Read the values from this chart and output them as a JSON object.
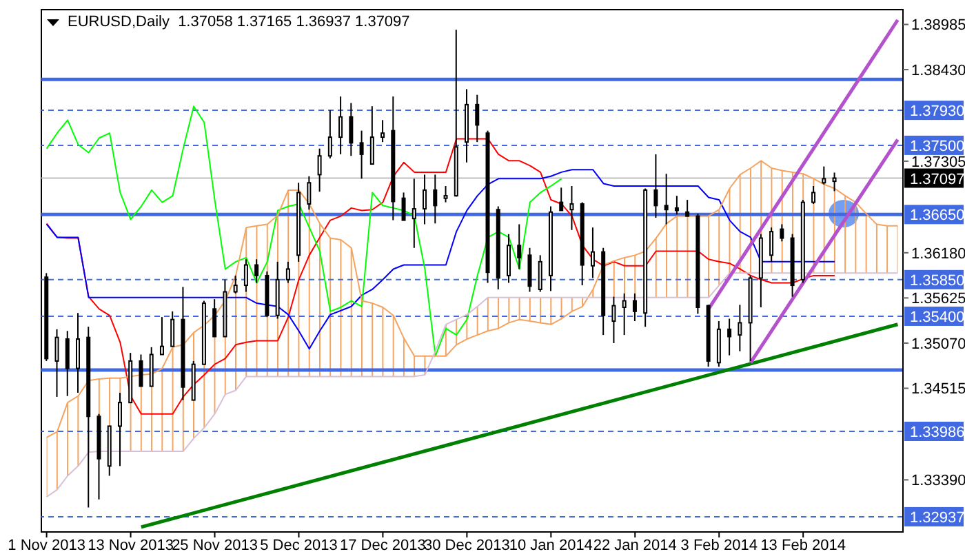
{
  "chart_data": {
    "type": "candlestick",
    "title": "EURUSD,Daily  1.37058 1.37165 1.36937 1.37097",
    "categories": [
      "1 Nov 2013",
      null,
      null,
      null,
      null,
      null,
      null,
      null,
      "13 Nov 2013",
      null,
      null,
      null,
      null,
      null,
      null,
      null,
      "25 Nov 2013",
      null,
      null,
      null,
      null,
      null,
      null,
      null,
      "5 Dec 2013",
      null,
      null,
      null,
      null,
      null,
      null,
      null,
      "17 Dec 2013",
      null,
      null,
      null,
      null,
      null,
      null,
      null,
      "30 Dec 2013",
      null,
      null,
      null,
      null,
      null,
      null,
      null,
      "10 Jan 2014",
      null,
      null,
      null,
      null,
      null,
      null,
      null,
      "22 Jan 2014",
      null,
      null,
      null,
      null,
      null,
      null,
      null,
      "3 Feb 2014",
      null,
      null,
      null,
      null,
      null,
      null,
      null,
      "13 Feb 2014",
      null,
      null,
      null,
      null,
      null,
      null,
      null,
      null,
      null
    ],
    "color": "#000000",
    "ohlc": [
      [
        1.3588,
        1.3593,
        1.3485,
        1.3488
      ],
      [
        1.3485,
        1.3524,
        1.3441,
        1.3514
      ],
      [
        1.3512,
        1.3522,
        1.3442,
        1.3476
      ],
      [
        1.3476,
        1.3544,
        1.3446,
        1.3512
      ],
      [
        1.3514,
        1.3527,
        1.3305,
        1.3417
      ],
      [
        1.3417,
        1.342,
        1.3315,
        1.3365
      ],
      [
        1.3356,
        1.3405,
        1.3344,
        1.3405
      ],
      [
        1.3405,
        1.3446,
        1.3356,
        1.3434
      ],
      [
        1.3434,
        1.3495,
        1.3434,
        1.3485
      ],
      [
        1.3485,
        1.3493,
        1.3454,
        1.3454
      ],
      [
        1.3454,
        1.3502,
        1.3454,
        1.3493
      ],
      [
        1.3493,
        1.3539,
        1.3493,
        1.3503
      ],
      [
        1.3503,
        1.3546,
        1.3503,
        1.3536
      ],
      [
        1.3536,
        1.3576,
        1.3437,
        1.3453
      ],
      [
        1.3437,
        1.3485,
        1.3437,
        1.3481
      ],
      [
        1.3481,
        1.3559,
        1.3481,
        1.3556
      ],
      [
        1.3549,
        1.3561,
        1.3515,
        1.3515
      ],
      [
        1.3515,
        1.3585,
        1.3515,
        1.357
      ],
      [
        1.357,
        1.359,
        1.3568,
        1.3578
      ],
      [
        1.3578,
        1.361,
        1.357,
        1.3603
      ],
      [
        1.3603,
        1.361,
        1.3581,
        1.359
      ],
      [
        1.359,
        1.3595,
        1.3539,
        1.3541
      ],
      [
        1.3541,
        1.3607,
        1.3537,
        1.3585
      ],
      [
        1.3585,
        1.3607,
        1.3581,
        1.3598
      ],
      [
        1.3615,
        1.3704,
        1.3607,
        1.3692
      ],
      [
        1.3678,
        1.3712,
        1.3671,
        1.3704
      ],
      [
        1.3714,
        1.3746,
        1.3693,
        1.3737
      ],
      [
        1.3737,
        1.3793,
        1.3734,
        1.376
      ],
      [
        1.376,
        1.381,
        1.3739,
        1.3785
      ],
      [
        1.3785,
        1.3802,
        1.3737,
        1.3753
      ],
      [
        1.3753,
        1.3768,
        1.3709,
        1.3739
      ],
      [
        1.3727,
        1.3798,
        1.3727,
        1.376
      ],
      [
        1.376,
        1.3781,
        1.3754,
        1.3765
      ],
      [
        1.3768,
        1.381,
        1.3658,
        1.3681
      ],
      [
        1.3685,
        1.3692,
        1.3658,
        1.3658
      ],
      [
        1.366,
        1.3709,
        1.3624,
        1.3672
      ],
      [
        1.3672,
        1.3714,
        1.3653,
        1.3695
      ],
      [
        1.3695,
        1.3714,
        1.3654,
        1.3676
      ],
      [
        1.3685,
        1.37,
        1.368,
        1.3688
      ],
      [
        1.3688,
        1.3892,
        1.3687,
        1.3748
      ],
      [
        1.3754,
        1.3819,
        1.3729,
        1.38
      ],
      [
        1.38,
        1.3812,
        1.3754,
        1.3775
      ],
      [
        1.3765,
        1.3768,
        1.3581,
        1.3594
      ],
      [
        1.3671,
        1.3675,
        1.3573,
        1.3587
      ],
      [
        1.359,
        1.3641,
        1.3581,
        1.3627
      ],
      [
        1.3627,
        1.3653,
        1.3598,
        1.3612
      ],
      [
        1.3615,
        1.3624,
        1.357,
        1.3577
      ],
      [
        1.3573,
        1.3615,
        1.357,
        1.3607
      ],
      [
        1.359,
        1.3675,
        1.3571,
        1.3668
      ],
      [
        1.368,
        1.3698,
        1.367,
        1.367
      ],
      [
        1.3671,
        1.37,
        1.3646,
        1.3678
      ],
      [
        1.3678,
        1.368,
        1.3578,
        1.3603
      ],
      [
        1.3602,
        1.3649,
        1.3587,
        1.3619
      ],
      [
        1.3619,
        1.3624,
        1.3517,
        1.3541
      ],
      [
        1.3534,
        1.3564,
        1.3507,
        1.3553
      ],
      [
        1.3551,
        1.3568,
        1.3517,
        1.3559
      ],
      [
        1.3559,
        1.3568,
        1.3534,
        1.3546
      ],
      [
        1.3544,
        1.3697,
        1.3527,
        1.3695
      ],
      [
        1.3695,
        1.3739,
        1.3661,
        1.3676
      ],
      [
        1.3676,
        1.3715,
        1.3653,
        1.3671
      ],
      [
        1.3673,
        1.3688,
        1.3665,
        1.367
      ],
      [
        1.3668,
        1.3683,
        1.3663,
        1.3663
      ],
      [
        1.3663,
        1.3666,
        1.3543,
        1.3551
      ],
      [
        1.3553,
        1.3554,
        1.3478,
        1.3485
      ],
      [
        1.3483,
        1.3534,
        1.3478,
        1.3524
      ],
      [
        1.3524,
        1.3537,
        1.3492,
        1.3515
      ],
      [
        1.3517,
        1.3554,
        1.3497,
        1.3532
      ],
      [
        1.3532,
        1.359,
        1.3485,
        1.3587
      ],
      [
        1.3587,
        1.3641,
        1.3551,
        1.3636
      ],
      [
        1.3615,
        1.3649,
        1.3607,
        1.3644
      ],
      [
        1.3647,
        1.3653,
        1.3632,
        1.3636
      ],
      [
        1.3636,
        1.3641,
        1.3564,
        1.3578
      ],
      [
        1.3585,
        1.3683,
        1.3581,
        1.368
      ],
      [
        1.368,
        1.37,
        1.3678,
        1.3692
      ],
      [
        1.3704,
        1.3724,
        1.3702,
        1.3709
      ],
      [
        1.37058,
        1.37165,
        1.36937,
        1.37097
      ],
      null,
      null,
      null,
      null,
      null,
      null
    ],
    "series": [
      {
        "type": "line",
        "color": "#ff0000",
        "values": [
          1.3654,
          1.3637,
          1.3636,
          1.3636,
          1.3564,
          1.3549,
          1.3541,
          1.3508,
          1.3442,
          1.342,
          1.342,
          1.342,
          1.342,
          1.3441,
          1.3456,
          1.3468,
          1.3481,
          1.3488,
          1.3505,
          1.3508,
          1.351,
          1.351,
          1.351,
          1.3539,
          1.3585,
          1.3615,
          1.3637,
          1.3658,
          1.3663,
          1.3673,
          1.367,
          1.3671,
          1.368,
          1.3712,
          1.3729,
          1.3717,
          1.3717,
          1.3717,
          1.3717,
          1.3758,
          1.3758,
          1.3758,
          1.3758,
          1.3739,
          1.3731,
          1.3731,
          1.3725,
          1.3717,
          1.3683,
          1.3678,
          1.3663,
          1.3627,
          1.361,
          1.3602,
          1.3607,
          1.3602,
          1.3602,
          1.3602,
          1.362,
          1.362,
          1.362,
          1.362,
          1.362,
          1.361,
          1.3607,
          1.3605,
          1.3598,
          1.359,
          1.3585,
          1.3581,
          1.3581,
          1.3581,
          1.3586,
          1.359,
          1.359,
          1.359,
          null,
          null,
          null,
          null,
          null,
          null
        ]
      },
      {
        "type": "line",
        "color": "#0000ff",
        "values": [
          1.3653,
          1.3637,
          1.3637,
          1.3637,
          1.3563,
          1.3563,
          1.3563,
          1.3563,
          1.3563,
          1.3563,
          1.3563,
          1.3563,
          1.3563,
          1.3563,
          1.3563,
          1.3563,
          1.3563,
          1.3563,
          1.3563,
          1.3563,
          1.3556,
          1.3554,
          1.3552,
          1.3542,
          1.3522,
          1.35,
          1.3522,
          1.3542,
          1.3547,
          1.3552,
          1.3566,
          1.3573,
          1.3585,
          1.3598,
          1.3603,
          1.3603,
          1.3603,
          1.3603,
          1.3603,
          1.3644,
          1.367,
          1.3688,
          1.3702,
          1.3709,
          1.3709,
          1.3709,
          1.3709,
          1.3709,
          1.3712,
          1.3717,
          1.372,
          1.372,
          1.372,
          1.3703,
          1.37,
          1.37,
          1.37,
          1.37,
          1.37,
          1.37,
          1.37,
          1.37,
          1.37,
          1.3686,
          1.3683,
          1.3658,
          1.3644,
          1.3637,
          1.3607,
          1.3607,
          1.3607,
          1.3607,
          1.3607,
          1.3607,
          1.3607,
          1.3607,
          null,
          null,
          null,
          null,
          null,
          null
        ]
      },
      {
        "type": "line",
        "color": "#00ff00",
        "values": [
          1.3746,
          1.3765,
          1.3781,
          1.3751,
          1.3741,
          1.3759,
          1.3765,
          1.3692,
          1.3659,
          1.3675,
          1.3695,
          1.368,
          1.3688,
          1.3746,
          1.3798,
          1.3778,
          1.3683,
          1.3598,
          1.3607,
          1.3612,
          1.3581,
          1.3607,
          1.367,
          1.3675,
          1.3678,
          1.3649,
          1.362,
          1.3546,
          1.3551,
          1.3559,
          1.3552,
          1.3692,
          1.3676,
          1.3673,
          1.367,
          1.3663,
          1.3598,
          1.3491,
          1.3525,
          1.3517,
          1.3536,
          1.359,
          1.3637,
          1.3644,
          1.3637,
          1.3598,
          1.368,
          1.3692,
          1.37,
          1.3709,
          null,
          null,
          null,
          null,
          null,
          null,
          null,
          null,
          null,
          null,
          null,
          null,
          null,
          null,
          null,
          null,
          null,
          null,
          null,
          null,
          null,
          null,
          null,
          null,
          null,
          null,
          null,
          null,
          null,
          null,
          null,
          null
        ]
      },
      {
        "type": "line",
        "color": "#f4a460",
        "lower": [
          1.3318,
          1.3327,
          1.3344,
          1.3356,
          1.3373,
          1.3374,
          1.3374,
          1.3374,
          1.3374,
          1.3374,
          1.3374,
          1.3374,
          1.3374,
          1.3374,
          1.339,
          1.3403,
          1.342,
          1.3444,
          1.3449,
          1.3466,
          1.3466,
          1.3466,
          1.3466,
          1.3466,
          1.3466,
          1.3466,
          1.3466,
          1.3466,
          1.3466,
          1.3466,
          1.3466,
          1.3466,
          1.3466,
          1.3466,
          1.3466,
          1.3466,
          1.3468,
          1.3491,
          1.3491,
          1.3505,
          1.3512,
          1.3517,
          1.3522,
          1.3525,
          1.3532,
          1.3536,
          1.3534,
          1.3532,
          1.353,
          1.3537,
          1.3546,
          1.3552,
          1.3563,
          1.3563,
          1.3563,
          1.3563,
          1.3563,
          1.3563,
          1.3563,
          1.3563,
          1.3563,
          1.3563,
          1.3563,
          1.3563,
          1.3578,
          1.3593,
          1.3593,
          1.3593,
          1.3593,
          1.3593,
          1.3593,
          1.3593,
          1.3593,
          1.3593,
          1.3593,
          1.3593,
          1.3593,
          1.3593,
          1.3593,
          1.3593,
          1.3593,
          1.3593
        ],
        "upper": [
          1.3391,
          1.3398,
          1.3434,
          1.3442,
          1.3461,
          1.3463,
          1.3464,
          1.3464,
          1.3466,
          1.3468,
          1.3469,
          1.3476,
          1.3502,
          1.3505,
          1.352,
          1.3529,
          1.3541,
          1.3559,
          1.359,
          1.3649,
          1.3651,
          1.3653,
          1.3664,
          1.3695,
          1.3695,
          1.3678,
          1.3654,
          1.3636,
          1.3634,
          1.3624,
          1.3559,
          1.3556,
          1.3551,
          1.3541,
          1.3513,
          1.3491,
          1.3491,
          1.3497,
          1.353,
          1.3536,
          1.3542,
          1.3552,
          1.3563,
          1.3563,
          1.3563,
          1.3563,
          1.3563,
          1.3563,
          1.3563,
          1.3563,
          1.3563,
          1.3563,
          1.3573,
          1.3603,
          1.3608,
          1.3612,
          1.3615,
          1.362,
          1.3636,
          1.3654,
          1.3663,
          1.3663,
          1.3663,
          1.3663,
          1.3671,
          1.3697,
          1.3714,
          1.3722,
          1.3731,
          1.3722,
          1.3719,
          1.3717,
          1.3715,
          1.3709,
          1.3702,
          1.3697,
          1.3688,
          1.368,
          1.3666,
          1.3653,
          1.3651,
          1.3651
        ],
        "values": [
          1.3391,
          1.3398,
          1.3434,
          1.3442,
          1.3461,
          1.3463,
          1.3464,
          1.3464,
          1.3466,
          1.3468,
          1.3469,
          1.3476,
          1.3502,
          1.3505,
          1.352,
          1.3529,
          1.3541,
          1.3559,
          1.359,
          1.3649,
          1.3651,
          1.3653,
          1.3664,
          1.3695,
          1.3695,
          1.3678,
          1.3654,
          1.3636,
          1.3634,
          1.3624,
          1.3559,
          1.3556,
          1.3551,
          1.3541,
          1.3513,
          1.3491,
          1.3491,
          1.3491,
          1.3491,
          1.3505,
          1.3512,
          1.3517,
          1.3522,
          1.3525,
          1.3532,
          1.3536,
          1.3534,
          1.3532,
          1.353,
          1.3537,
          1.3546,
          1.3552,
          1.3573,
          1.3603,
          1.3608,
          1.3612,
          1.3615,
          1.362,
          1.3636,
          1.3654,
          1.3663,
          1.3663,
          1.3663,
          1.3663,
          1.3671,
          1.3697,
          1.3714,
          1.3722,
          1.3731,
          1.3722,
          1.3719,
          1.3717,
          1.3715,
          1.3709,
          1.3702,
          1.3697,
          1.3688,
          1.368,
          1.3666,
          1.3653,
          1.3651,
          1.3651
        ]
      },
      {
        "type": "line",
        "color": "#d8bfd8",
        "values": [
          1.3318,
          1.3327,
          1.3344,
          1.3356,
          1.3373,
          1.3374,
          1.3374,
          1.3374,
          1.3374,
          1.3374,
          1.3374,
          1.3374,
          1.3374,
          1.3374,
          1.339,
          1.3403,
          1.342,
          1.3444,
          1.3449,
          1.3466,
          1.3466,
          1.3466,
          1.3466,
          1.3466,
          1.3466,
          1.3466,
          1.3466,
          1.3466,
          1.3466,
          1.3466,
          1.3466,
          1.3466,
          1.3466,
          1.3466,
          1.3466,
          1.3466,
          1.3468,
          1.3497,
          1.353,
          1.3536,
          1.3542,
          1.3552,
          1.3563,
          1.3563,
          1.3563,
          1.3563,
          1.3563,
          1.3563,
          1.3563,
          1.3563,
          1.3563,
          1.3563,
          1.3563,
          1.3563,
          1.3563,
          1.3563,
          1.3563,
          1.3563,
          1.3563,
          1.3563,
          1.3563,
          1.3563,
          1.3563,
          1.3563,
          1.3578,
          1.3593,
          1.3593,
          1.3593,
          1.3593,
          1.3593,
          1.3593,
          1.3593,
          1.3593,
          1.3593,
          1.3593,
          1.3593,
          1.3593,
          1.3593,
          1.3593,
          1.3593,
          1.3593,
          1.3593
        ]
      },
      {
        "type": "line",
        "color": "#008000",
        "values": [
          null,
          null,
          null,
          null,
          null,
          null,
          null,
          null,
          null,
          1.3281,
          null,
          null,
          null,
          null,
          null,
          null,
          null,
          null,
          null,
          null,
          null,
          null,
          null,
          null,
          null,
          null,
          null,
          null,
          null,
          null,
          null,
          null,
          null,
          null,
          null,
          null,
          null,
          null,
          null,
          null,
          null,
          null,
          null,
          null,
          null,
          null,
          null,
          null,
          null,
          null,
          null,
          null,
          null,
          null,
          null,
          null,
          null,
          null,
          null,
          null,
          null,
          null,
          null,
          null,
          null,
          null,
          null,
          null,
          null,
          null,
          null,
          null,
          null,
          null,
          null,
          null,
          null,
          null,
          null,
          null,
          null,
          1.353
        ]
      },
      {
        "type": "line",
        "color": "#b452cd",
        "values": [
          null,
          null,
          null,
          null,
          null,
          null,
          null,
          null,
          null,
          null,
          null,
          null,
          null,
          null,
          null,
          null,
          null,
          null,
          null,
          null,
          null,
          null,
          null,
          null,
          null,
          null,
          null,
          null,
          null,
          null,
          null,
          null,
          null,
          null,
          null,
          null,
          null,
          null,
          null,
          null,
          null,
          null,
          null,
          null,
          null,
          null,
          null,
          null,
          null,
          null,
          null,
          null,
          null,
          null,
          null,
          null,
          null,
          null,
          null,
          null,
          null,
          null,
          null,
          1.3549,
          null,
          null,
          null,
          null,
          null,
          null,
          null,
          null,
          null,
          null,
          null,
          null,
          null,
          null,
          null,
          null,
          null,
          1.3904
        ]
      },
      {
        "type": "line",
        "color": "#b452cd",
        "values": [
          null,
          null,
          null,
          null,
          null,
          null,
          null,
          null,
          null,
          null,
          null,
          null,
          null,
          null,
          null,
          null,
          null,
          null,
          null,
          null,
          null,
          null,
          null,
          null,
          null,
          null,
          null,
          null,
          null,
          null,
          null,
          null,
          null,
          null,
          null,
          null,
          null,
          null,
          null,
          null,
          null,
          null,
          null,
          null,
          null,
          null,
          null,
          null,
          null,
          null,
          null,
          null,
          null,
          null,
          null,
          null,
          null,
          null,
          null,
          null,
          null,
          null,
          null,
          null,
          null,
          null,
          null,
          1.3483,
          null,
          null,
          null,
          null,
          null,
          null,
          null,
          null,
          null,
          null,
          null,
          null,
          null,
          1.3757
        ]
      }
    ],
    "ylim": [
      1.3275,
      1.3915
    ],
    "yticks": [
      1.38985,
      {
        "value": 1.3843,
        "label": "1.38430"
      },
      1.37305,
      {
        "value": 1.3618,
        "label": "1.36180"
      },
      1.35625,
      {
        "value": 1.3507,
        "label": "1.35070"
      },
      1.34515,
      {
        "value": 1.3339,
        "label": "1.33390"
      }
    ],
    "ref_lines": [
      {
        "axis": "y",
        "value": 1.3831,
        "label": null,
        "color": "#4169e1",
        "line_style": "solid"
      },
      {
        "axis": "y",
        "value": 1.3793,
        "label": "1.37930",
        "color": "#4169e1",
        "line_style": "dashed"
      },
      {
        "axis": "y",
        "value": 1.375,
        "label": "1.37500",
        "color": "#4169e1",
        "line_style": "dashed"
      },
      {
        "axis": "y",
        "value": 1.37097,
        "label": "1.37097",
        "color": "#c0c0c0",
        "line_style": "solid"
      },
      {
        "axis": "y",
        "value": 1.3665,
        "label": "1.36650",
        "color": "#4169e1",
        "line_style": "solid"
      },
      {
        "axis": "y",
        "value": 1.3585,
        "label": "1.35850",
        "color": "#4169e1",
        "line_style": "dashed"
      },
      {
        "axis": "y",
        "value": 1.354,
        "label": "1.35400",
        "color": "#4169e1",
        "line_style": "dashed"
      },
      {
        "axis": "y",
        "value": 1.3474,
        "label": null,
        "color": "#4169e1",
        "line_style": "solid"
      },
      {
        "axis": "y",
        "value": 1.33986,
        "label": "1.33986",
        "color": "#4169e1",
        "line_style": "dashed"
      },
      {
        "axis": "y",
        "value": 1.32937,
        "label": "1.32937",
        "color": "#4169e1",
        "line_style": "dashed"
      }
    ]
  }
}
